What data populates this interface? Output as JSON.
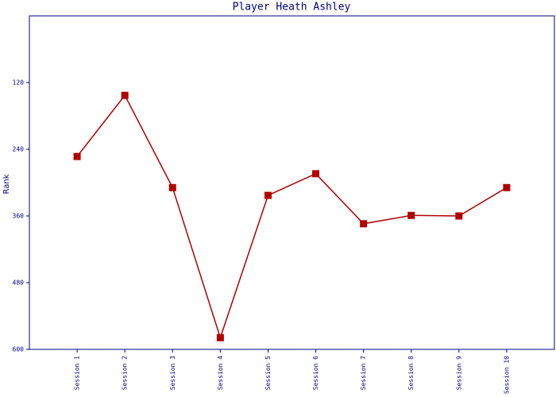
{
  "chart_data": {
    "type": "line",
    "title": "Player Heath Ashley",
    "y_label": "Rank",
    "categories": [
      "Session 1",
      "Session 2",
      "Session 3",
      "Session 4",
      "Session 5",
      "Session 6",
      "Session 7",
      "Session 8",
      "Session 9",
      "Session 10"
    ],
    "series": [
      {
        "name": "Rank",
        "color": "#b00000",
        "values": [
          253,
          143,
          309,
          579,
          323,
          284,
          374,
          359,
          360,
          309
        ]
      }
    ],
    "ylim": [
      600,
      0
    ],
    "yticks": [
      120,
      240,
      360,
      480,
      600
    ],
    "grid": false
  }
}
